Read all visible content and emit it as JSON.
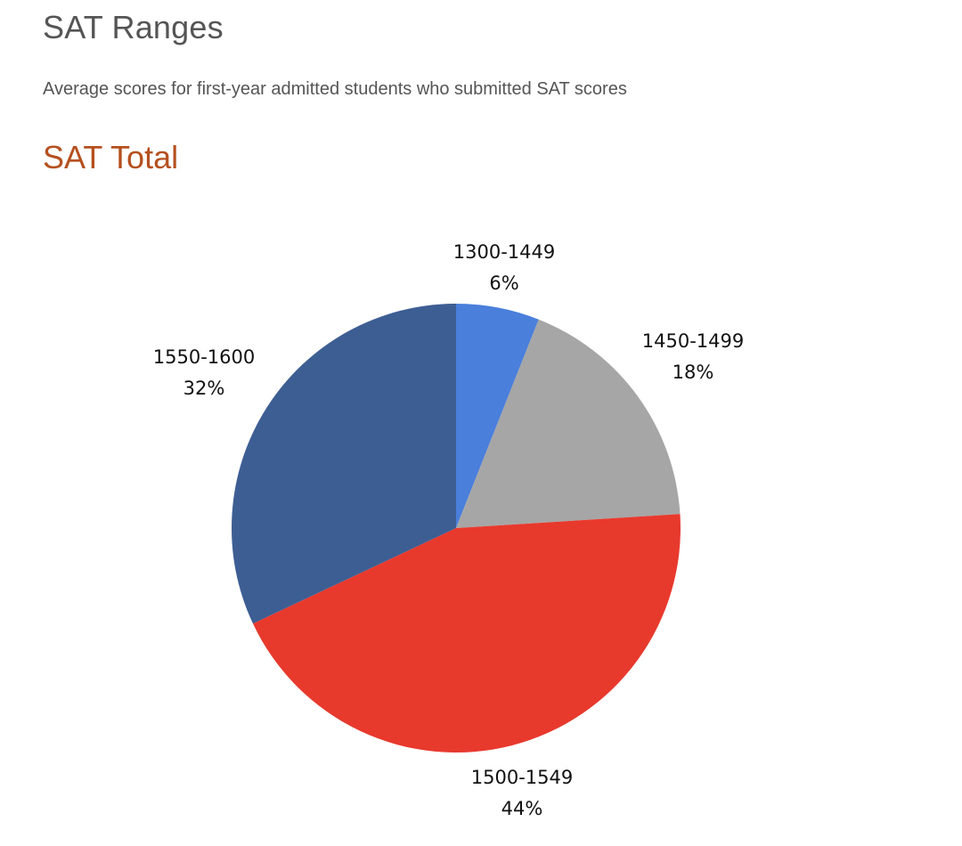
{
  "header": {
    "title": "SAT Ranges",
    "subtitle": "Average scores for first-year admitted students who submitted SAT scores"
  },
  "section": {
    "title": "SAT Total"
  },
  "chart_data": {
    "type": "pie",
    "title": "",
    "slices": [
      {
        "label": "1300-1449",
        "value": 6,
        "value_label": "6%",
        "color": "#4a7fdb"
      },
      {
        "label": "1450-1499",
        "value": 18,
        "value_label": "18%",
        "color": "#a6a6a6"
      },
      {
        "label": "1500-1549",
        "value": 44,
        "value_label": "44%",
        "color": "#e8392d"
      },
      {
        "label": "1550-1600",
        "value": 32,
        "value_label": "32%",
        "color": "#3d5e93"
      }
    ],
    "start": "top",
    "direction": "clockwise",
    "legend": "none"
  }
}
